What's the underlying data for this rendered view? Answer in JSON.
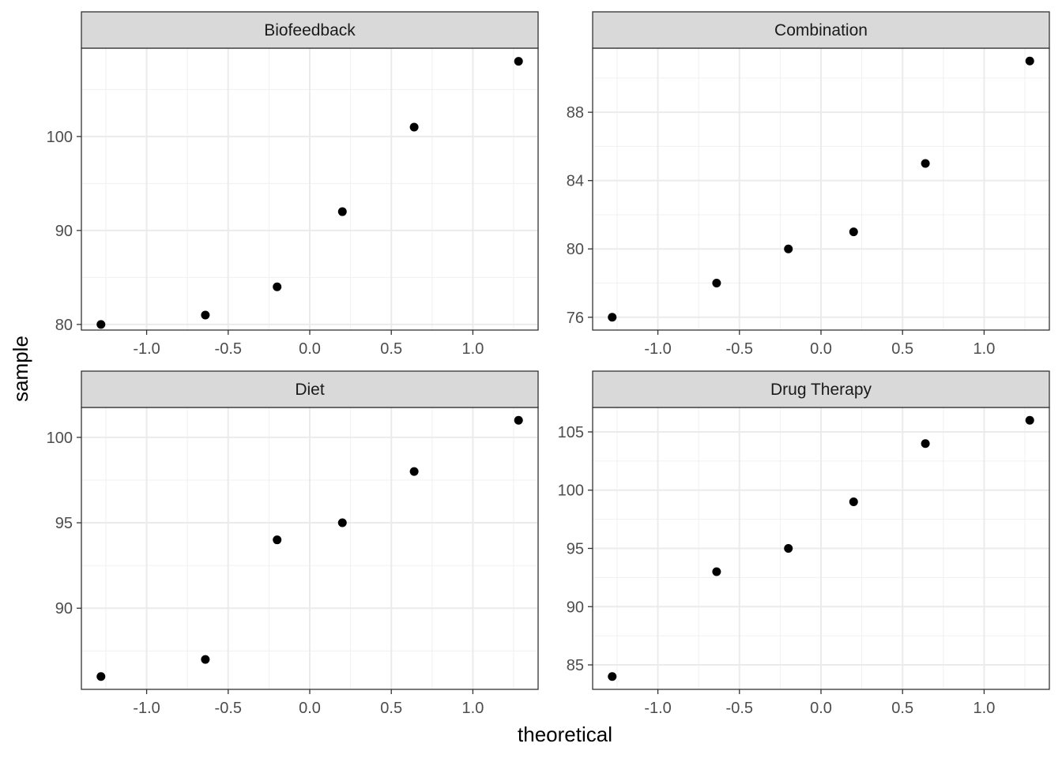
{
  "chart_data": {
    "type": "scatter",
    "xlabel": "theoretical",
    "ylabel": "sample",
    "grid": true,
    "facets": [
      {
        "title": "Biofeedback",
        "x": [
          -1.28,
          -0.64,
          -0.2,
          0.2,
          0.64,
          1.28
        ],
        "y": [
          80,
          81,
          84,
          92,
          101,
          108
        ],
        "xlim": [
          -1.4,
          1.4
        ],
        "ylim": [
          79.4,
          109.4
        ],
        "xticks": [
          -1.0,
          -0.5,
          0.0,
          0.5,
          1.0
        ],
        "xtick_labels": [
          "-1.0",
          "-0.5",
          "0.0",
          "0.5",
          "1.0"
        ],
        "yticks": [
          80,
          90,
          100
        ],
        "ytick_labels": [
          "80",
          "90",
          "100"
        ]
      },
      {
        "title": "Combination",
        "x": [
          -1.28,
          -0.64,
          -0.2,
          0.2,
          0.64,
          1.28
        ],
        "y": [
          76,
          78,
          80,
          81,
          85,
          91
        ],
        "xlim": [
          -1.4,
          1.4
        ],
        "ylim": [
          75.25,
          91.75
        ],
        "xticks": [
          -1.0,
          -0.5,
          0.0,
          0.5,
          1.0
        ],
        "xtick_labels": [
          "-1.0",
          "-0.5",
          "0.0",
          "0.5",
          "1.0"
        ],
        "yticks": [
          76,
          80,
          84,
          88
        ],
        "ytick_labels": [
          "76",
          "80",
          "84",
          "88"
        ]
      },
      {
        "title": "Diet",
        "x": [
          -1.28,
          -0.64,
          -0.2,
          0.2,
          0.64,
          1.28
        ],
        "y": [
          86,
          87,
          94,
          95,
          98,
          101
        ],
        "xlim": [
          -1.4,
          1.4
        ],
        "ylim": [
          85.25,
          101.75
        ],
        "xticks": [
          -1.0,
          -0.5,
          0.0,
          0.5,
          1.0
        ],
        "xtick_labels": [
          "-1.0",
          "-0.5",
          "0.0",
          "0.5",
          "1.0"
        ],
        "yticks": [
          90,
          95,
          100
        ],
        "ytick_labels": [
          "90",
          "95",
          "100"
        ]
      },
      {
        "title": "Drug Therapy",
        "x": [
          -1.28,
          -0.64,
          -0.2,
          0.2,
          0.64,
          1.28
        ],
        "y": [
          84,
          93,
          95,
          99,
          104,
          106
        ],
        "xlim": [
          -1.4,
          1.4
        ],
        "ylim": [
          82.9,
          107.1
        ],
        "xticks": [
          -1.0,
          -0.5,
          0.0,
          0.5,
          1.0
        ],
        "xtick_labels": [
          "-1.0",
          "-0.5",
          "0.0",
          "0.5",
          "1.0"
        ],
        "yticks": [
          85,
          90,
          95,
          100,
          105
        ],
        "ytick_labels": [
          "85",
          "90",
          "95",
          "100",
          "105"
        ]
      }
    ]
  }
}
